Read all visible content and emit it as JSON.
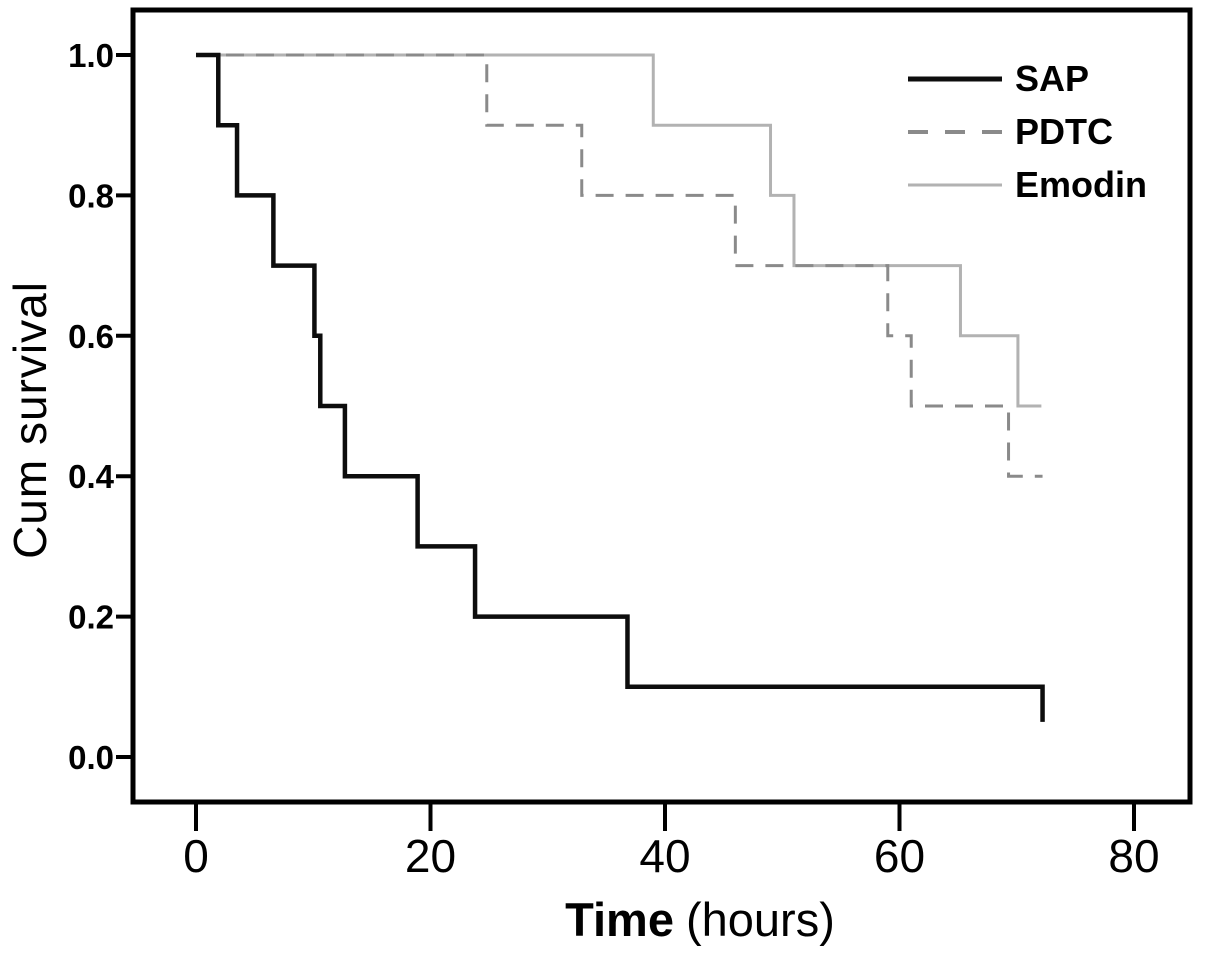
{
  "figure": {
    "background": "#ffffff",
    "frame_color": "#000000"
  },
  "legend": {
    "position": "top-right",
    "items": [
      {
        "label": "SAP",
        "color": "#0d0d0d",
        "style": "solid",
        "stroke_width": 5
      },
      {
        "label": "PDTC",
        "color": "#8a8a8a",
        "style": "dashed",
        "stroke_width": 4
      },
      {
        "label": "Emodin",
        "color": "#b2b2b2",
        "style": "solid",
        "stroke_width": 3
      }
    ]
  },
  "chart_data": {
    "type": "line",
    "subtype": "kaplan-meier-step-survival",
    "title": "",
    "xlabel": "Time (hours)",
    "xlabel_parts": {
      "bold": "Time",
      "regular": "(hours)"
    },
    "ylabel": "Cum survival",
    "xlim": [
      -5.4,
      84.8
    ],
    "ylim": [
      -0.064,
      1.064
    ],
    "x_ticks": [
      0,
      20,
      40,
      60,
      80
    ],
    "x_tick_labels": [
      "0",
      "20",
      "40",
      "60",
      "80"
    ],
    "y_ticks": [
      0.0,
      0.2,
      0.4,
      0.6,
      0.8,
      1.0
    ],
    "y_tick_labels": [
      "0.0",
      "0.2",
      "0.4",
      "0.6",
      "0.8",
      "1.0"
    ],
    "grid": false,
    "legend_position": "top-right",
    "series": [
      {
        "name": "Emodin",
        "color": "#b2b2b2",
        "style": "solid",
        "stroke_width": 3,
        "dash": null,
        "start_survival": 1.0,
        "steps": [
          [
            39.0,
            0.9
          ],
          [
            49.0,
            0.8
          ],
          [
            51.0,
            0.7
          ],
          [
            65.2,
            0.6
          ],
          [
            70.1,
            0.5
          ]
        ],
        "end_t": 72.1
      },
      {
        "name": "PDTC",
        "color": "#8a8a8a",
        "style": "dashed",
        "stroke_width": 3,
        "dash": "18 12",
        "start_survival": 1.0,
        "steps": [
          [
            24.8,
            0.9
          ],
          [
            32.9,
            0.8
          ],
          [
            46.0,
            0.7
          ],
          [
            59.0,
            0.6
          ],
          [
            61.0,
            0.5
          ],
          [
            69.3,
            0.4
          ]
        ],
        "end_t": 72.2
      },
      {
        "name": "SAP",
        "color": "#0d0d0d",
        "style": "solid",
        "stroke_width": 4.5,
        "dash": null,
        "start_survival": 1.0,
        "steps": [
          [
            1.9,
            0.9
          ],
          [
            3.5,
            0.8
          ],
          [
            6.6,
            0.7
          ],
          [
            10.1,
            0.6
          ],
          [
            10.6,
            0.5
          ],
          [
            12.7,
            0.4
          ],
          [
            18.9,
            0.3
          ],
          [
            23.8,
            0.2
          ],
          [
            36.8,
            0.1
          ],
          [
            72.2,
            0.05
          ]
        ],
        "end_t": 72.2
      }
    ]
  }
}
